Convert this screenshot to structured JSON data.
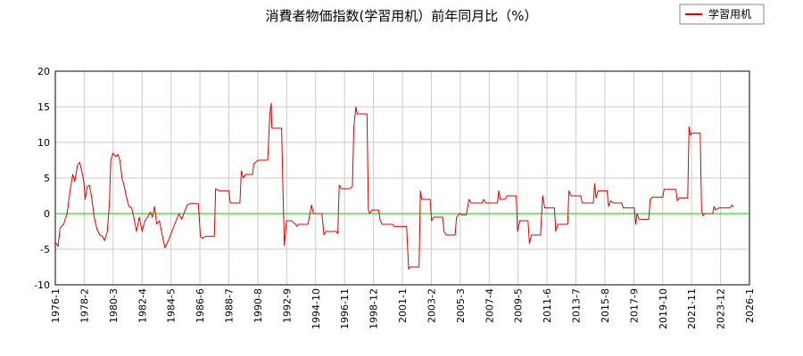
{
  "chart_data": {
    "type": "line",
    "title": "消費者物価指数(学習用机）前年同月比（%）",
    "xlabel": "",
    "ylabel": "",
    "ylim": [
      -10,
      20
    ],
    "yticks": [
      -10,
      -5,
      0,
      5,
      10,
      15,
      20
    ],
    "xlim": [
      1976.0,
      2026.0
    ],
    "xticks": [
      {
        "label": "1976-1",
        "x": 1976.0
      },
      {
        "label": "1978-2",
        "x": 1978.083
      },
      {
        "label": "1980-3",
        "x": 1980.167
      },
      {
        "label": "1982-4",
        "x": 1982.25
      },
      {
        "label": "1984-5",
        "x": 1984.333
      },
      {
        "label": "1986-6",
        "x": 1986.417
      },
      {
        "label": "1988-7",
        "x": 1988.5
      },
      {
        "label": "1990-8",
        "x": 1990.583
      },
      {
        "label": "1992-9",
        "x": 1992.667
      },
      {
        "label": "1994-10",
        "x": 1994.75
      },
      {
        "label": "1996-11",
        "x": 1996.833
      },
      {
        "label": "1998-12",
        "x": 1998.917
      },
      {
        "label": "2001-1",
        "x": 2001.0
      },
      {
        "label": "2003-2",
        "x": 2003.083
      },
      {
        "label": "2005-3",
        "x": 2005.167
      },
      {
        "label": "2007-4",
        "x": 2007.25
      },
      {
        "label": "2009-5",
        "x": 2009.333
      },
      {
        "label": "2011-6",
        "x": 2011.417
      },
      {
        "label": "2013-7",
        "x": 2013.5
      },
      {
        "label": "2015-8",
        "x": 2015.583
      },
      {
        "label": "2017-9",
        "x": 2017.667
      },
      {
        "label": "2019-10",
        "x": 2019.75
      },
      {
        "label": "2021-11",
        "x": 2021.833
      },
      {
        "label": "2023-12",
        "x": 2023.917
      },
      {
        "label": "2026-1",
        "x": 2026.0
      }
    ],
    "grid": true,
    "legend": "top-right",
    "zero_line_color": "#00cc00",
    "series": [
      {
        "name": "学習用机",
        "color": "#dd0000",
        "points": [
          [
            1976.0,
            -4.0
          ],
          [
            1976.2,
            -4.6
          ],
          [
            1976.35,
            -2.0
          ],
          [
            1976.6,
            -1.5
          ],
          [
            1976.85,
            0.0
          ],
          [
            1977.05,
            3.0
          ],
          [
            1977.25,
            5.5
          ],
          [
            1977.4,
            4.5
          ],
          [
            1977.6,
            6.8
          ],
          [
            1977.75,
            7.2
          ],
          [
            1977.9,
            6.0
          ],
          [
            1978.05,
            4.5
          ],
          [
            1978.15,
            2.0
          ],
          [
            1978.3,
            3.8
          ],
          [
            1978.45,
            4.0
          ],
          [
            1978.6,
            2.5
          ],
          [
            1978.8,
            -0.5
          ],
          [
            1979.0,
            -2.2
          ],
          [
            1979.2,
            -3.0
          ],
          [
            1979.4,
            -3.2
          ],
          [
            1979.55,
            -3.8
          ],
          [
            1979.75,
            -2.5
          ],
          [
            1979.9,
            1.5
          ],
          [
            1980.0,
            7.5
          ],
          [
            1980.15,
            8.5
          ],
          [
            1980.35,
            8.0
          ],
          [
            1980.5,
            8.3
          ],
          [
            1980.65,
            7.5
          ],
          [
            1980.8,
            5.0
          ],
          [
            1980.95,
            4.0
          ],
          [
            1981.1,
            2.5
          ],
          [
            1981.3,
            1.0
          ],
          [
            1981.5,
            0.8
          ],
          [
            1981.65,
            -0.5
          ],
          [
            1981.85,
            -2.5
          ],
          [
            1982.05,
            -0.5
          ],
          [
            1982.25,
            -2.5
          ],
          [
            1982.45,
            -1.0
          ],
          [
            1982.65,
            -0.5
          ],
          [
            1982.85,
            0.2
          ],
          [
            1983.0,
            -0.5
          ],
          [
            1983.15,
            1.0
          ],
          [
            1983.3,
            -1.5
          ],
          [
            1983.5,
            -1.0
          ],
          [
            1983.7,
            -3.0
          ],
          [
            1983.9,
            -4.8
          ],
          [
            1984.1,
            -4.0
          ],
          [
            1984.3,
            -3.0
          ],
          [
            1984.5,
            -2.0
          ],
          [
            1984.7,
            -1.0
          ],
          [
            1984.9,
            0.0
          ],
          [
            1985.1,
            -0.8
          ],
          [
            1985.3,
            0.2
          ],
          [
            1985.5,
            1.2
          ],
          [
            1985.7,
            1.4
          ],
          [
            1986.0,
            1.4
          ],
          [
            1986.3,
            1.4
          ],
          [
            1986.45,
            -3.2
          ],
          [
            1986.6,
            -3.5
          ],
          [
            1986.8,
            -3.2
          ],
          [
            1987.2,
            -3.2
          ],
          [
            1987.45,
            -3.2
          ],
          [
            1987.55,
            3.5
          ],
          [
            1987.8,
            3.2
          ],
          [
            1988.2,
            3.2
          ],
          [
            1988.5,
            3.2
          ],
          [
            1988.6,
            1.5
          ],
          [
            1989.0,
            1.5
          ],
          [
            1989.3,
            1.5
          ],
          [
            1989.4,
            6.0
          ],
          [
            1989.55,
            5.0
          ],
          [
            1989.7,
            5.5
          ],
          [
            1990.0,
            5.5
          ],
          [
            1990.2,
            5.5
          ],
          [
            1990.3,
            7.0
          ],
          [
            1990.6,
            7.5
          ],
          [
            1991.0,
            7.5
          ],
          [
            1991.3,
            7.5
          ],
          [
            1991.45,
            14.0
          ],
          [
            1991.55,
            15.5
          ],
          [
            1991.6,
            12.0
          ],
          [
            1991.9,
            12.0
          ],
          [
            1992.3,
            12.0
          ],
          [
            1992.4,
            3.0
          ],
          [
            1992.5,
            -4.5
          ],
          [
            1992.65,
            -1.0
          ],
          [
            1993.0,
            -1.0
          ],
          [
            1993.3,
            -1.5
          ],
          [
            1993.4,
            -1.8
          ],
          [
            1993.5,
            -1.5
          ],
          [
            1994.0,
            -1.5
          ],
          [
            1994.2,
            -1.5
          ],
          [
            1994.3,
            -0.5
          ],
          [
            1994.45,
            1.2
          ],
          [
            1994.6,
            0.0
          ],
          [
            1995.0,
            0.0
          ],
          [
            1995.2,
            0.0
          ],
          [
            1995.35,
            -3.0
          ],
          [
            1995.5,
            -2.5
          ],
          [
            1995.8,
            -2.5
          ],
          [
            1996.2,
            -2.5
          ],
          [
            1996.35,
            -2.8
          ],
          [
            1996.45,
            4.0
          ],
          [
            1996.6,
            3.5
          ],
          [
            1996.8,
            3.5
          ],
          [
            1997.2,
            3.5
          ],
          [
            1997.4,
            3.8
          ],
          [
            1997.5,
            12.0
          ],
          [
            1997.65,
            15.0
          ],
          [
            1997.75,
            14.0
          ],
          [
            1998.2,
            14.0
          ],
          [
            1998.45,
            14.0
          ],
          [
            1998.55,
            0.5
          ],
          [
            1998.65,
            0.0
          ],
          [
            1998.8,
            0.5
          ],
          [
            1999.3,
            0.5
          ],
          [
            1999.4,
            -1.0
          ],
          [
            1999.55,
            -1.5
          ],
          [
            2000.0,
            -1.5
          ],
          [
            2000.3,
            -1.5
          ],
          [
            2000.4,
            -1.8
          ],
          [
            2000.6,
            -1.8
          ],
          [
            2001.0,
            -1.8
          ],
          [
            2001.3,
            -1.8
          ],
          [
            2001.45,
            -7.8
          ],
          [
            2001.55,
            -7.5
          ],
          [
            2002.0,
            -7.5
          ],
          [
            2002.2,
            -7.5
          ],
          [
            2002.3,
            3.2
          ],
          [
            2002.4,
            2.0
          ],
          [
            2002.6,
            2.0
          ],
          [
            2002.8,
            2.0
          ],
          [
            2003.0,
            2.0
          ],
          [
            2003.1,
            -1.0
          ],
          [
            2003.25,
            -0.5
          ],
          [
            2003.6,
            -0.5
          ],
          [
            2003.9,
            -0.5
          ],
          [
            2004.0,
            -2.5
          ],
          [
            2004.15,
            -3.0
          ],
          [
            2004.5,
            -3.0
          ],
          [
            2004.8,
            -3.0
          ],
          [
            2004.9,
            -0.5
          ],
          [
            2005.1,
            0.0
          ],
          [
            2005.3,
            -0.2
          ],
          [
            2005.6,
            -0.2
          ],
          [
            2005.8,
            2.0
          ],
          [
            2005.95,
            1.5
          ],
          [
            2006.4,
            1.5
          ],
          [
            2006.75,
            1.5
          ],
          [
            2006.85,
            2.0
          ],
          [
            2007.0,
            1.5
          ],
          [
            2007.5,
            1.5
          ],
          [
            2007.85,
            1.5
          ],
          [
            2007.95,
            3.2
          ],
          [
            2008.05,
            2.0
          ],
          [
            2008.4,
            2.0
          ],
          [
            2008.55,
            2.5
          ],
          [
            2009.0,
            2.5
          ],
          [
            2009.2,
            2.5
          ],
          [
            2009.3,
            -2.5
          ],
          [
            2009.45,
            -1.0
          ],
          [
            2009.8,
            -1.0
          ],
          [
            2010.05,
            -1.0
          ],
          [
            2010.15,
            -4.2
          ],
          [
            2010.3,
            -3.0
          ],
          [
            2010.6,
            -3.0
          ],
          [
            2010.95,
            -3.0
          ],
          [
            2011.1,
            2.5
          ],
          [
            2011.25,
            0.8
          ],
          [
            2011.6,
            0.8
          ],
          [
            2011.95,
            0.8
          ],
          [
            2012.05,
            -2.5
          ],
          [
            2012.2,
            -1.5
          ],
          [
            2012.55,
            -1.5
          ],
          [
            2012.9,
            -1.5
          ],
          [
            2013.0,
            3.2
          ],
          [
            2013.15,
            2.5
          ],
          [
            2013.5,
            2.5
          ],
          [
            2013.85,
            2.5
          ],
          [
            2013.95,
            1.5
          ],
          [
            2014.3,
            1.5
          ],
          [
            2014.75,
            1.5
          ],
          [
            2014.85,
            4.2
          ],
          [
            2014.95,
            2.2
          ],
          [
            2015.1,
            3.2
          ],
          [
            2015.5,
            3.2
          ],
          [
            2015.75,
            3.2
          ],
          [
            2015.85,
            1.0
          ],
          [
            2016.0,
            1.8
          ],
          [
            2016.2,
            1.5
          ],
          [
            2016.6,
            1.5
          ],
          [
            2016.8,
            1.5
          ],
          [
            2016.9,
            0.8
          ],
          [
            2017.3,
            0.8
          ],
          [
            2017.7,
            0.8
          ],
          [
            2017.8,
            -1.5
          ],
          [
            2017.9,
            0.0
          ],
          [
            2018.05,
            -0.8
          ],
          [
            2018.5,
            -0.8
          ],
          [
            2018.75,
            -0.8
          ],
          [
            2018.85,
            2.0
          ],
          [
            2019.0,
            2.3
          ],
          [
            2019.4,
            2.3
          ],
          [
            2019.75,
            2.3
          ],
          [
            2019.85,
            3.4
          ],
          [
            2020.2,
            3.4
          ],
          [
            2020.7,
            3.4
          ],
          [
            2020.8,
            1.8
          ],
          [
            2020.95,
            2.2
          ],
          [
            2021.3,
            2.2
          ],
          [
            2021.55,
            2.2
          ],
          [
            2021.65,
            12.2
          ],
          [
            2021.75,
            11.0
          ],
          [
            2021.85,
            11.3
          ],
          [
            2022.3,
            11.3
          ],
          [
            2022.45,
            11.3
          ],
          [
            2022.55,
            0.5
          ],
          [
            2022.65,
            -0.3
          ],
          [
            2022.8,
            0.0
          ],
          [
            2023.1,
            0.0
          ],
          [
            2023.35,
            0.0
          ],
          [
            2023.45,
            1.0
          ],
          [
            2023.55,
            0.5
          ],
          [
            2023.8,
            0.8
          ],
          [
            2024.2,
            0.8
          ],
          [
            2024.6,
            0.8
          ],
          [
            2024.75,
            1.2
          ],
          [
            2024.85,
            0.9
          ]
        ]
      }
    ]
  }
}
